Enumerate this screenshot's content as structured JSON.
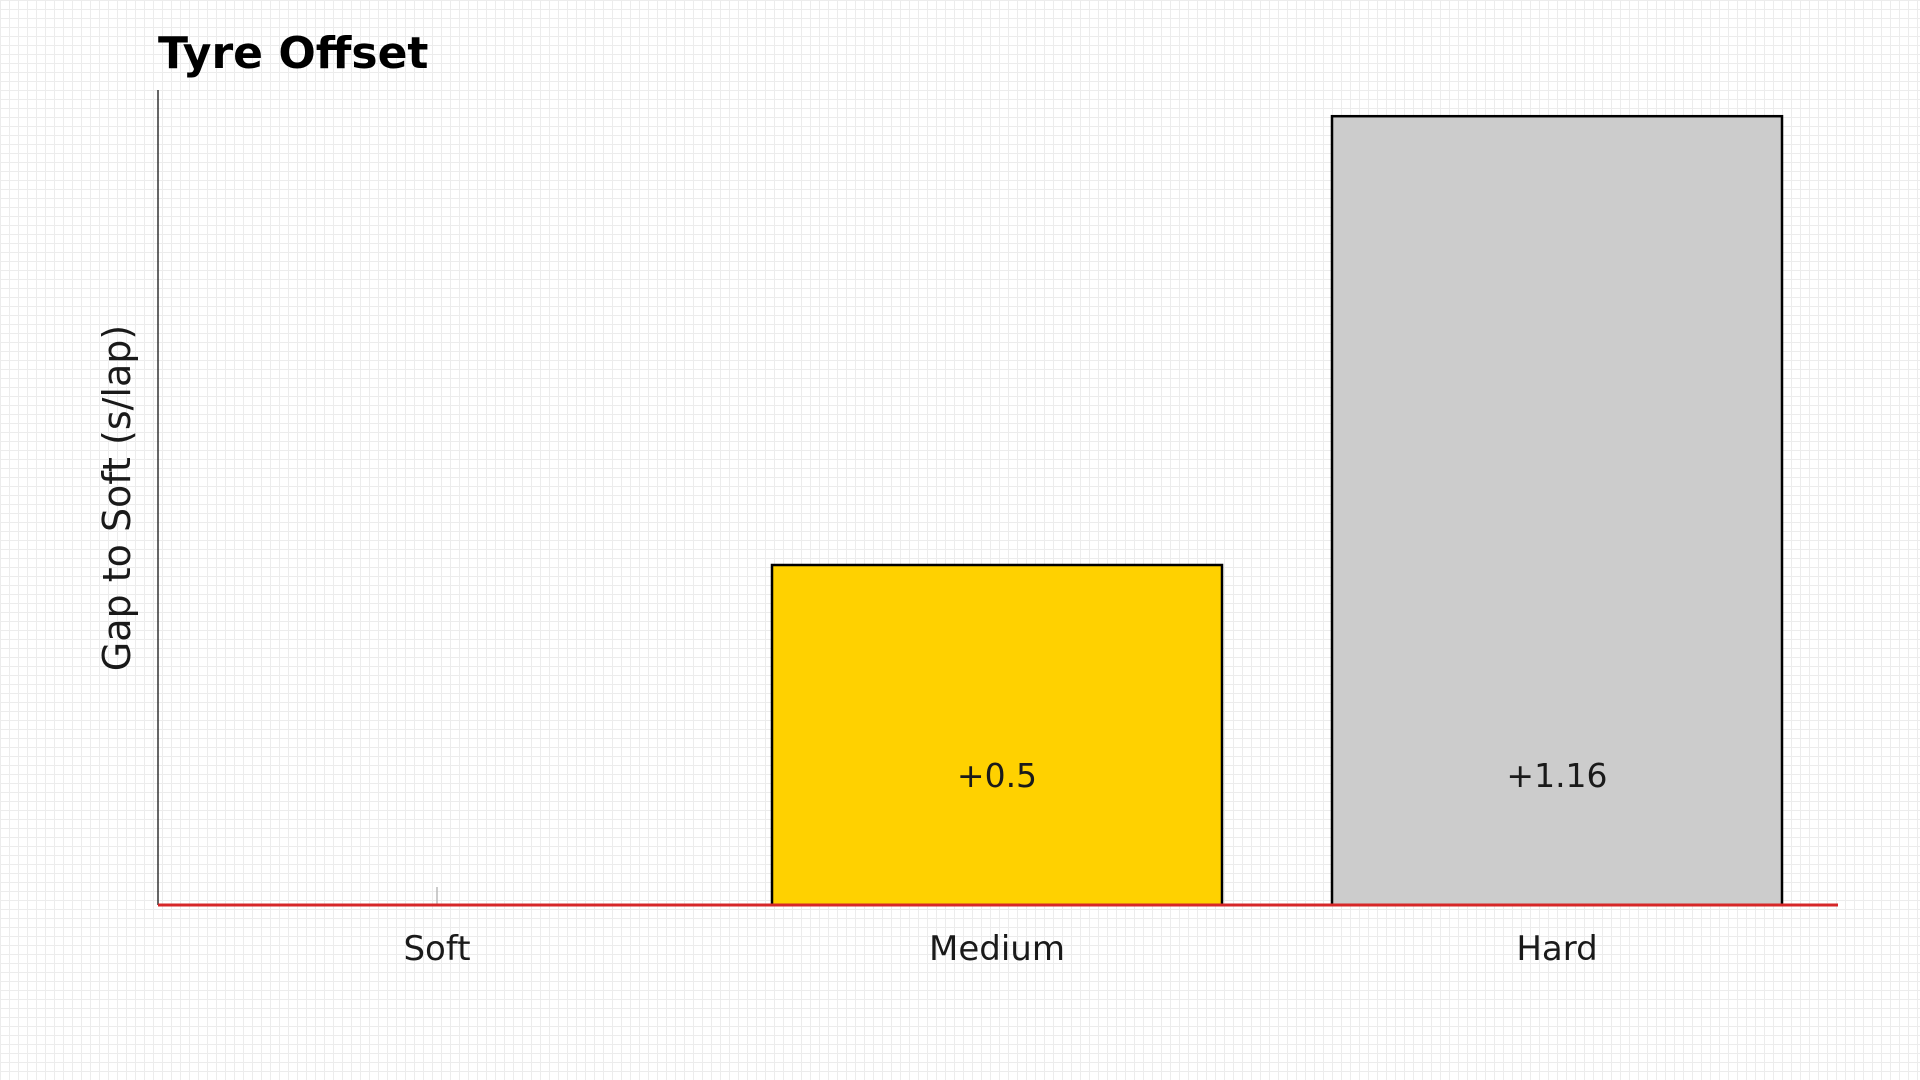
{
  "chart_data": {
    "type": "bar",
    "title": "Tyre Offset",
    "xlabel": "",
    "ylabel": "Gap to Soft (s/lap)",
    "categories": [
      "Soft",
      "Medium",
      "Hard"
    ],
    "values": [
      0,
      0.5,
      1.16
    ],
    "data_labels": [
      "",
      "+0.5",
      "+1.16"
    ],
    "ylim": [
      0,
      1.2
    ],
    "grid": false,
    "legend": "none",
    "colors": {
      "bars": [
        "#ffffff",
        "#ffd100",
        "#cccccc"
      ],
      "baseline": "#d62728",
      "bar_edge": "#000000"
    }
  }
}
